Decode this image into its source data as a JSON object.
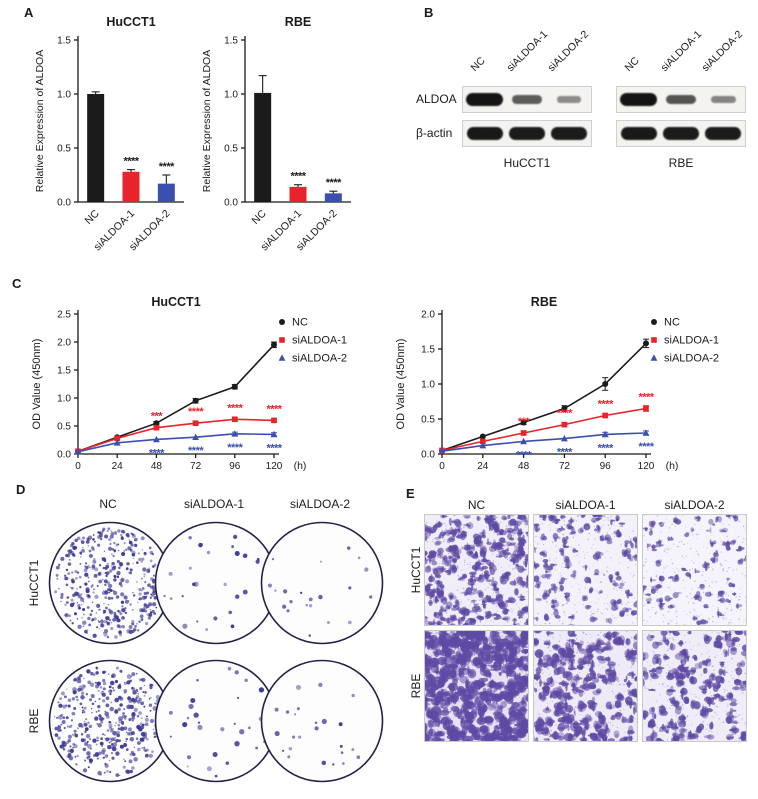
{
  "panels": {
    "A": {
      "label": "A"
    },
    "B": {
      "label": "B",
      "row_labels": [
        "ALDOA",
        "β-actin"
      ],
      "groups": [
        {
          "cell_line": "HuCCT1",
          "lanes": [
            "NC",
            "siALDOA-1",
            "siALDOA-2"
          ],
          "bands": {
            "aldoa": [
              1.0,
              0.55,
              0.25
            ],
            "actin": [
              0.97,
              0.95,
              0.95
            ]
          }
        },
        {
          "cell_line": "RBE",
          "lanes": [
            "NC",
            "siALDOA-1",
            "siALDOA-2"
          ],
          "bands": {
            "aldoa": [
              1.0,
              0.6,
              0.3
            ],
            "actin": [
              0.97,
              0.95,
              0.95
            ]
          }
        }
      ]
    },
    "C": {
      "label": "C"
    },
    "D": {
      "label": "D",
      "col_headers": [
        "NC",
        "siALDOA-1",
        "siALDOA-2"
      ],
      "row_labels": [
        "HuCCT1",
        "RBE"
      ],
      "dot_color": "#403b95",
      "wells": [
        {
          "seed": 101,
          "colonies": 430,
          "dot_min": 0.6,
          "dot_max": 2.2
        },
        {
          "seed": 102,
          "colonies": 26,
          "dot_min": 1.0,
          "dot_max": 2.6
        },
        {
          "seed": 103,
          "colonies": 21,
          "dot_min": 1.0,
          "dot_max": 2.4
        },
        {
          "seed": 104,
          "colonies": 400,
          "dot_min": 0.6,
          "dot_max": 2.4
        },
        {
          "seed": 105,
          "colonies": 30,
          "dot_min": 1.0,
          "dot_max": 2.8
        },
        {
          "seed": 106,
          "colonies": 24,
          "dot_min": 1.0,
          "dot_max": 2.6
        }
      ]
    },
    "E": {
      "label": "E",
      "col_headers": [
        "NC",
        "siALDOA-1",
        "siALDOA-2"
      ],
      "row_labels": [
        "HuCCT1",
        "RBE"
      ],
      "cell_color": "#5e4aa4",
      "images": [
        {
          "seed": 201,
          "cells": 260,
          "blob": 3.0,
          "bg": "#f2eef9"
        },
        {
          "seed": 202,
          "cells": 110,
          "blob": 2.6,
          "bg": "#f4f1fa"
        },
        {
          "seed": 203,
          "cells": 70,
          "blob": 2.4,
          "bg": "#f5f3fb"
        },
        {
          "seed": 204,
          "cells": 420,
          "blob": 4.4,
          "bg": "#e9e2f4"
        },
        {
          "seed": 205,
          "cells": 200,
          "blob": 3.8,
          "bg": "#efeaf7"
        },
        {
          "seed": 206,
          "cells": 150,
          "blob": 3.4,
          "bg": "#f0ecf8"
        }
      ]
    }
  },
  "chart_data": [
    {
      "type": "bar",
      "title": "HuCCT1",
      "ylabel": "Relative Expression of ALDOA",
      "categories": [
        "NC",
        "siALDOA-1",
        "siALDOA-2"
      ],
      "values": [
        1.0,
        0.28,
        0.17
      ],
      "errors": [
        0.02,
        0.02,
        0.08
      ],
      "bar_colors": [
        "#1b1b1b",
        "#e8232b",
        "#3a4fae"
      ],
      "annotations": [
        "",
        "****",
        "****"
      ],
      "ylim": [
        0,
        1.5
      ],
      "yticks": [
        0,
        0.5,
        1,
        1.5
      ]
    },
    {
      "type": "bar",
      "title": "RBE",
      "ylabel": "Relative Expression of ALDOA",
      "categories": [
        "NC",
        "siALDOA-1",
        "siALDOA-2"
      ],
      "values": [
        1.01,
        0.14,
        0.08
      ],
      "errors": [
        0.16,
        0.02,
        0.02
      ],
      "bar_colors": [
        "#1b1b1b",
        "#e8232b",
        "#3a4fae"
      ],
      "annotations": [
        "",
        "****",
        "****"
      ],
      "ylim": [
        0,
        1.5
      ],
      "yticks": [
        0,
        0.5,
        1,
        1.5
      ]
    },
    {
      "type": "line",
      "title": "HuCCT1",
      "ylabel": "OD Value (450nm)",
      "xlabel": "(h)",
      "x": [
        0,
        24,
        48,
        72,
        96,
        120
      ],
      "ylim": [
        0,
        2.5
      ],
      "yticks": [
        0,
        0.5,
        1,
        1.5,
        2,
        2.5
      ],
      "series": [
        {
          "name": "NC",
          "color": "#1b1b1b",
          "marker": "circle",
          "values": [
            0.05,
            0.3,
            0.55,
            0.95,
            1.2,
            1.95
          ],
          "errors": [
            0.02,
            0.02,
            0.03,
            0.04,
            0.04,
            0.05
          ]
        },
        {
          "name": "siALDOA-1",
          "color": "#e8232b",
          "marker": "square",
          "values": [
            0.05,
            0.28,
            0.47,
            0.55,
            0.62,
            0.6
          ],
          "errors": [
            0.02,
            0.02,
            0.03,
            0.03,
            0.03,
            0.03
          ]
        },
        {
          "name": "siALDOA-2",
          "color": "#3a4fae",
          "marker": "triangle",
          "values": [
            0.04,
            0.2,
            0.26,
            0.3,
            0.36,
            0.35
          ],
          "errors": [
            0.02,
            0.02,
            0.02,
            0.02,
            0.03,
            0.03
          ]
        }
      ],
      "annotations_above": {
        "color": "#e8232b",
        "items": [
          {
            "x": 48,
            "text": "***"
          },
          {
            "x": 72,
            "text": "****"
          },
          {
            "x": 96,
            "text": "****"
          },
          {
            "x": 120,
            "text": "****"
          }
        ]
      },
      "annotations_below": {
        "color": "#3a4fae",
        "items": [
          {
            "x": 48,
            "text": "****"
          },
          {
            "x": 72,
            "text": "****"
          },
          {
            "x": 96,
            "text": "****"
          },
          {
            "x": 120,
            "text": "****"
          }
        ]
      }
    },
    {
      "type": "line",
      "title": "RBE",
      "ylabel": "OD Value (450nm)",
      "xlabel": "(h)",
      "x": [
        0,
        24,
        48,
        72,
        96,
        120
      ],
      "ylim": [
        0,
        2.0
      ],
      "yticks": [
        0,
        0.5,
        1,
        1.5,
        2
      ],
      "series": [
        {
          "name": "NC",
          "color": "#1b1b1b",
          "marker": "circle",
          "values": [
            0.05,
            0.25,
            0.45,
            0.65,
            1.0,
            1.58
          ],
          "errors": [
            0.02,
            0.02,
            0.03,
            0.04,
            0.09,
            0.06
          ]
        },
        {
          "name": "siALDOA-1",
          "color": "#e8232b",
          "marker": "square",
          "values": [
            0.05,
            0.18,
            0.3,
            0.42,
            0.55,
            0.65
          ],
          "errors": [
            0.02,
            0.02,
            0.03,
            0.03,
            0.03,
            0.04
          ]
        },
        {
          "name": "siALDOA-2",
          "color": "#3a4fae",
          "marker": "triangle",
          "values": [
            0.04,
            0.12,
            0.18,
            0.22,
            0.28,
            0.3
          ],
          "errors": [
            0.02,
            0.02,
            0.02,
            0.02,
            0.03,
            0.03
          ]
        }
      ],
      "annotations_above": {
        "color": "#e8232b",
        "items": [
          {
            "x": 48,
            "text": "***"
          },
          {
            "x": 72,
            "text": "****"
          },
          {
            "x": 96,
            "text": "****"
          },
          {
            "x": 120,
            "text": "****"
          }
        ]
      },
      "annotations_below": {
        "color": "#3a4fae",
        "items": [
          {
            "x": 48,
            "text": "****"
          },
          {
            "x": 72,
            "text": "****"
          },
          {
            "x": 96,
            "text": "****"
          },
          {
            "x": 120,
            "text": "****"
          }
        ]
      }
    }
  ]
}
